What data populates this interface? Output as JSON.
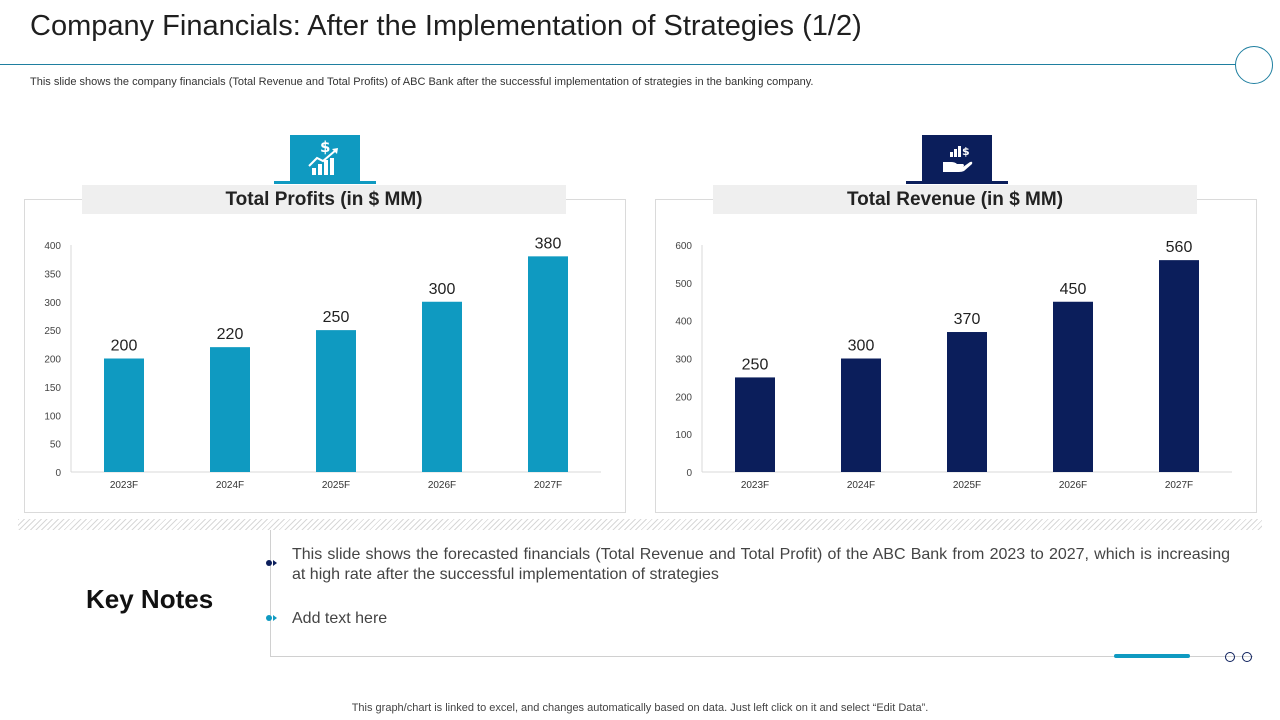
{
  "page": {
    "title": "Company Financials: After the Implementation of Strategies (1/2)",
    "subtitle": "This slide shows the company financials (Total Revenue and Total Profits) of ABC Bank after the successful implementation of strategies in the banking company.",
    "footer": "This graph/chart is linked to excel,  and changes automatically based on data. Just left click on it and select “Edit Data”."
  },
  "colors": {
    "teal": "#0f9ac1",
    "navy": "#0b1e5b",
    "rule": "#1f7fa0"
  },
  "icons": {
    "profits": "growth-chart-dollar-icon",
    "revenue": "hand-dollar-chart-icon"
  },
  "chart_data": [
    {
      "type": "bar",
      "title": "Total Profits (in $ MM)",
      "categories": [
        "2023F",
        "2024F",
        "2025F",
        "2026F",
        "2027F"
      ],
      "values": [
        200,
        220,
        250,
        300,
        380
      ],
      "ylim": [
        0,
        400
      ],
      "yticks": [
        0,
        50,
        100,
        150,
        200,
        250,
        300,
        350,
        400
      ],
      "color": "#0f9ac1",
      "grid": false,
      "data_labels": true
    },
    {
      "type": "bar",
      "title": "Total Revenue (in $ MM)",
      "categories": [
        "2023F",
        "2024F",
        "2025F",
        "2026F",
        "2027F"
      ],
      "values": [
        250,
        300,
        370,
        450,
        560
      ],
      "ylim": [
        0,
        600
      ],
      "yticks": [
        0,
        100,
        200,
        300,
        400,
        500,
        600
      ],
      "color": "#0b1e5b",
      "grid": false,
      "data_labels": true
    }
  ],
  "key_notes": {
    "heading": "Key Notes",
    "items": [
      "This slide shows the forecasted financials (Total Revenue and Total Profit) of the ABC Bank from 2023 to 2027, which is increasing at high rate after the successful implementation of strategies",
      "Add text here"
    ]
  }
}
